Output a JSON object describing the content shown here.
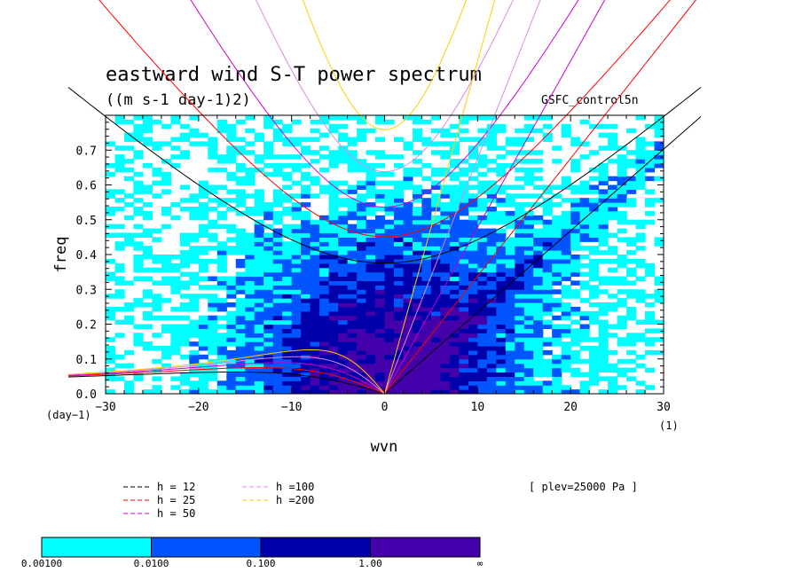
{
  "chart_data": {
    "type": "heatmap",
    "title": "eastward wind S-T power spectrum",
    "subtitle": "((m s-1 day-1)2)",
    "run_label": "GSFC_control5n",
    "xlabel": "wvn",
    "ylabel": "freq",
    "xlim": [
      -30,
      30
    ],
    "ylim": [
      0,
      0.8
    ],
    "x_ticks": [
      "−30",
      "−20",
      "−10",
      "0",
      "10",
      "20",
      "30"
    ],
    "y_ticks": [
      "0.0",
      "0.1",
      "0.2",
      "0.3",
      "0.4",
      "0.5",
      "0.6",
      "0.7"
    ],
    "y_unit_label": "(day−1)",
    "x_unit_label": "(1)",
    "level_label": "[ plev=25000 Pa ]",
    "equivalent_depths": [
      {
        "label": "h = 12",
        "h": 12,
        "color": "#000000"
      },
      {
        "label": "h = 25",
        "h": 25,
        "color": "#ff0000"
      },
      {
        "label": "h = 50",
        "h": 50,
        "color": "#cc00cc"
      },
      {
        "label": "h =100",
        "h": 100,
        "color": "#dd88dd"
      },
      {
        "label": "h =200",
        "h": 200,
        "color": "#ffcc00"
      }
    ],
    "colorbar": {
      "boundaries": [
        "0.00100",
        "0.0100",
        "0.100",
        "1.00",
        "∞"
      ],
      "colors": [
        "#00ffff",
        "#0055ff",
        "#0000aa",
        "#4400aa"
      ]
    },
    "dispersion_families": [
      "Kelvin",
      "Equatorial Rossby n=1",
      "Inertia-gravity n=1",
      "Inertia-gravity n=2"
    ]
  }
}
